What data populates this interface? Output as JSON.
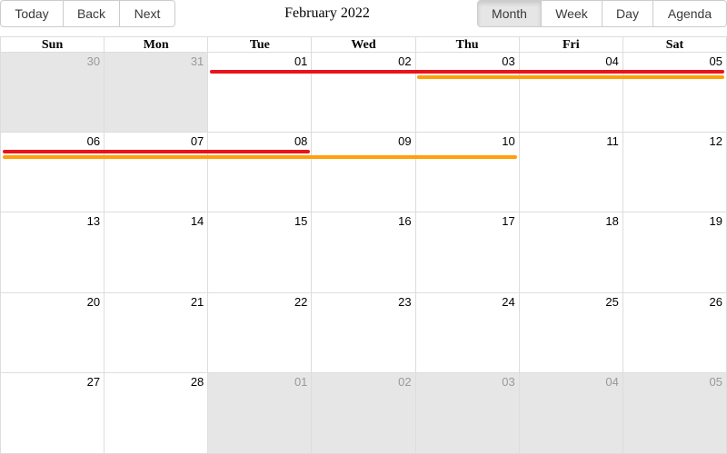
{
  "toolbar": {
    "nav": [
      "Today",
      "Back",
      "Next"
    ],
    "title": "February 2022",
    "views": [
      {
        "label": "Month",
        "active": true
      },
      {
        "label": "Week",
        "active": false
      },
      {
        "label": "Day",
        "active": false
      },
      {
        "label": "Agenda",
        "active": false
      }
    ]
  },
  "calendar": {
    "weekdays": [
      "Sun",
      "Mon",
      "Tue",
      "Wed",
      "Thu",
      "Fri",
      "Sat"
    ],
    "weeks": [
      [
        {
          "d": "30",
          "off": true
        },
        {
          "d": "31",
          "off": true
        },
        {
          "d": "01",
          "off": false
        },
        {
          "d": "02",
          "off": false
        },
        {
          "d": "03",
          "off": false
        },
        {
          "d": "04",
          "off": false
        },
        {
          "d": "05",
          "off": false
        }
      ],
      [
        {
          "d": "06",
          "off": false
        },
        {
          "d": "07",
          "off": false
        },
        {
          "d": "08",
          "off": false
        },
        {
          "d": "09",
          "off": false
        },
        {
          "d": "10",
          "off": false
        },
        {
          "d": "11",
          "off": false
        },
        {
          "d": "12",
          "off": false
        }
      ],
      [
        {
          "d": "13",
          "off": false
        },
        {
          "d": "14",
          "off": false
        },
        {
          "d": "15",
          "off": false
        },
        {
          "d": "16",
          "off": false
        },
        {
          "d": "17",
          "off": false
        },
        {
          "d": "18",
          "off": false
        },
        {
          "d": "19",
          "off": false
        }
      ],
      [
        {
          "d": "20",
          "off": false
        },
        {
          "d": "21",
          "off": false
        },
        {
          "d": "22",
          "off": false
        },
        {
          "d": "23",
          "off": false
        },
        {
          "d": "24",
          "off": false
        },
        {
          "d": "25",
          "off": false
        },
        {
          "d": "26",
          "off": false
        }
      ],
      [
        {
          "d": "27",
          "off": false
        },
        {
          "d": "28",
          "off": false
        },
        {
          "d": "01",
          "off": true
        },
        {
          "d": "02",
          "off": true
        },
        {
          "d": "03",
          "off": true
        },
        {
          "d": "04",
          "off": true
        },
        {
          "d": "05",
          "off": true
        }
      ]
    ]
  },
  "events": [
    {
      "color": "#e8141b",
      "start": "2022-02-01",
      "end": "2022-02-08"
    },
    {
      "color": "#ff9f0a",
      "start": "2022-02-03",
      "end": "2022-02-10"
    }
  ]
}
